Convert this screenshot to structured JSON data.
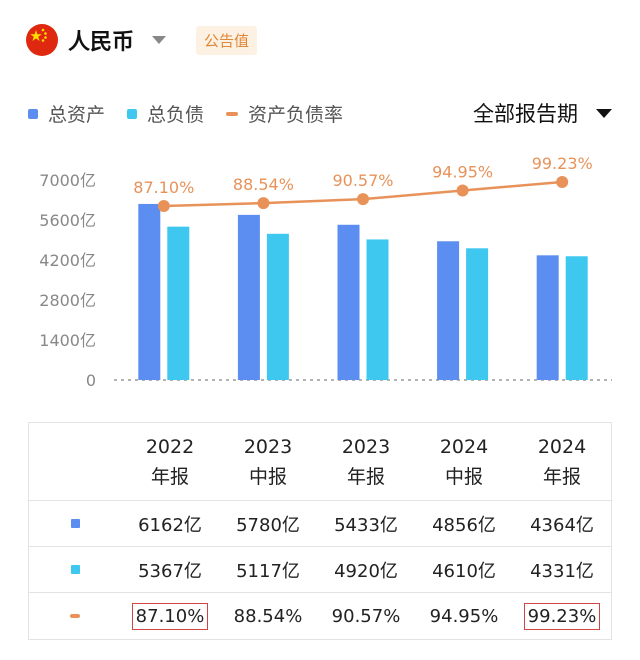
{
  "header": {
    "currency": "人民币",
    "badge": "公告值"
  },
  "legend": [
    {
      "label": "总资产",
      "color": "#5b8ef0",
      "shape": "square"
    },
    {
      "label": "总负债",
      "color": "#3fc8ef",
      "shape": "square"
    },
    {
      "label": "资产负债率",
      "color": "#e8925a",
      "shape": "line"
    }
  ],
  "period_selector": "全部报告期",
  "chart_data": {
    "type": "bar",
    "categories": [
      "2022年报",
      "2023中报",
      "2023年报",
      "2024中报",
      "2024年报"
    ],
    "series": [
      {
        "name": "总资产",
        "values": [
          6162,
          5780,
          5433,
          4856,
          4364
        ],
        "color": "#5b8ef0",
        "unit": "亿"
      },
      {
        "name": "总负债",
        "values": [
          5367,
          5117,
          4920,
          4610,
          4331
        ],
        "color": "#3fc8ef",
        "unit": "亿"
      },
      {
        "name": "资产负债率",
        "type": "line",
        "values": [
          87.1,
          88.54,
          90.57,
          94.95,
          99.23
        ],
        "color": "#e8925a",
        "unit": "%"
      }
    ],
    "y_ticks": [
      "7000亿",
      "5600亿",
      "4200亿",
      "2800亿",
      "1400亿",
      "0"
    ],
    "ylim": [
      0,
      7000
    ],
    "rate_labels": [
      "87.10%",
      "88.54%",
      "90.57%",
      "94.95%",
      "99.23%"
    ]
  },
  "table": {
    "columns": [
      {
        "year": "2022",
        "type": "年报"
      },
      {
        "year": "2023",
        "type": "中报"
      },
      {
        "year": "2023",
        "type": "年报"
      },
      {
        "year": "2024",
        "type": "中报"
      },
      {
        "year": "2024",
        "type": "年报"
      }
    ],
    "rows": [
      {
        "color": "#5b8ef0",
        "shape": "square",
        "cells": [
          "6162亿",
          "5780亿",
          "5433亿",
          "4856亿",
          "4364亿"
        ]
      },
      {
        "color": "#3fc8ef",
        "shape": "square",
        "cells": [
          "5367亿",
          "5117亿",
          "4920亿",
          "4610亿",
          "4331亿"
        ]
      },
      {
        "color": "#e8925a",
        "shape": "line",
        "cells": [
          "87.10%",
          "88.54%",
          "90.57%",
          "94.95%",
          "99.23%"
        ],
        "boxed": [
          0,
          4
        ]
      }
    ]
  }
}
